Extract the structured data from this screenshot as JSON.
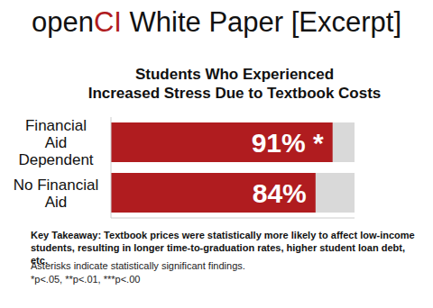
{
  "header": {
    "brand": [
      "open",
      "CI"
    ],
    "title": "White Paper [Excerpt]"
  },
  "chart_data": {
    "type": "bar",
    "orientation": "horizontal",
    "title": "Students Who Experienced\nIncreased Stress Due to Textbook Costs",
    "categories": [
      "Financial Aid Dependent",
      "No Financial Aid"
    ],
    "values": [
      91,
      84
    ],
    "value_labels": [
      "91% *",
      "84%"
    ],
    "color": "#b01c1f",
    "xlim": [
      0,
      100
    ],
    "tick_labels": "y",
    "data_labels": true,
    "annotations": [
      "Key Takeaway: Textbook prices were statistically more likely to affect low-income students, resulting in longer time-to-graduation rates, higher student loan debt, etc.",
      "Asterisks indicate statistically significant findings.",
      "*p<.05, **p<.01, ***p<.00"
    ]
  }
}
